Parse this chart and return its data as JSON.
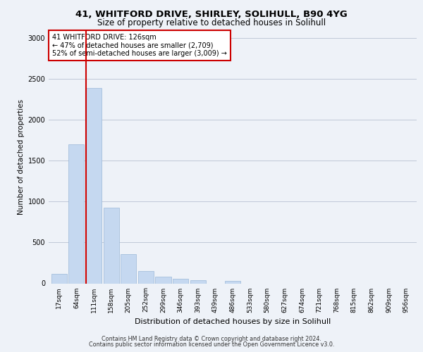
{
  "title_line1": "41, WHITFORD DRIVE, SHIRLEY, SOLIHULL, B90 4YG",
  "title_line2": "Size of property relative to detached houses in Solihull",
  "xlabel": "Distribution of detached houses by size in Solihull",
  "ylabel": "Number of detached properties",
  "footer_line1": "Contains HM Land Registry data © Crown copyright and database right 2024.",
  "footer_line2": "Contains public sector information licensed under the Open Government Licence v3.0.",
  "bin_labels": [
    "17sqm",
    "64sqm",
    "111sqm",
    "158sqm",
    "205sqm",
    "252sqm",
    "299sqm",
    "346sqm",
    "393sqm",
    "439sqm",
    "486sqm",
    "533sqm",
    "580sqm",
    "627sqm",
    "674sqm",
    "721sqm",
    "768sqm",
    "815sqm",
    "862sqm",
    "909sqm",
    "956sqm"
  ],
  "bar_values": [
    120,
    1700,
    2390,
    930,
    360,
    155,
    80,
    55,
    35,
    0,
    30,
    0,
    0,
    0,
    0,
    0,
    0,
    0,
    0,
    0,
    0
  ],
  "bar_color": "#c5d8f0",
  "bar_edge_color": "#9ab8d8",
  "grid_color": "#c0c8d8",
  "annotation_text": "41 WHITFORD DRIVE: 126sqm\n← 47% of detached houses are smaller (2,709)\n52% of semi-detached houses are larger (3,009) →",
  "vline_x": 1.55,
  "vline_color": "#cc0000",
  "annotation_box_color": "#ffffff",
  "annotation_box_edge_color": "#cc0000",
  "ylim": [
    0,
    3100
  ],
  "yticks": [
    0,
    500,
    1000,
    1500,
    2000,
    2500,
    3000
  ],
  "bg_color": "#eef2f8",
  "title1_fontsize": 9.5,
  "title2_fontsize": 8.5,
  "ylabel_fontsize": 7.5,
  "xlabel_fontsize": 8,
  "tick_fontsize": 6.5,
  "footer_fontsize": 5.8,
  "annot_fontsize": 7
}
